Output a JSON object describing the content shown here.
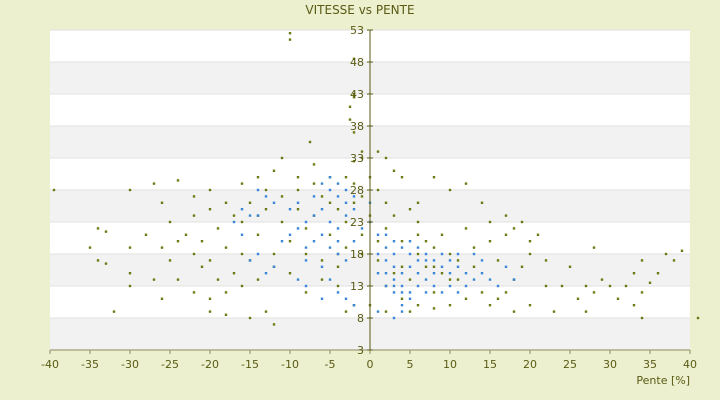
{
  "chart_data": {
    "type": "scatter",
    "title": "VITESSE vs PENTE",
    "xlabel": "Pente [%]",
    "ylabel": "",
    "xlim": [
      -40,
      40
    ],
    "ylim": [
      3,
      53
    ],
    "xticks": [
      -40,
      -35,
      -30,
      -25,
      -20,
      -15,
      -10,
      -5,
      0,
      5,
      10,
      15,
      20,
      25,
      30,
      35,
      40
    ],
    "yticks": [
      3,
      8,
      13,
      18,
      23,
      28,
      33,
      38,
      43,
      48,
      53
    ],
    "grid": "horizontal-bands",
    "legend": "none",
    "series": [
      {
        "color": "#6b7a12",
        "points": [
          [
            -10,
            52.5
          ],
          [
            -10,
            51.5
          ],
          [
            -2,
            48.5
          ],
          [
            -2,
            43
          ],
          [
            -2,
            42.5
          ],
          [
            -2.5,
            41
          ],
          [
            -2.5,
            39
          ],
          [
            -2,
            37
          ],
          [
            -7.5,
            35.5
          ],
          [
            -1,
            33
          ],
          [
            -2,
            32.5
          ],
          [
            -39.5,
            28
          ],
          [
            -30,
            28
          ],
          [
            -27,
            29
          ],
          [
            -24,
            29.5
          ],
          [
            -26,
            26
          ],
          [
            -22,
            24
          ],
          [
            -20,
            25
          ],
          [
            -34,
            22
          ],
          [
            -33,
            21.5
          ],
          [
            -35,
            19
          ],
          [
            -28,
            21
          ],
          [
            -30,
            19
          ],
          [
            -26,
            19
          ],
          [
            -24,
            20
          ],
          [
            -22,
            18
          ],
          [
            -20,
            17
          ],
          [
            -18,
            19
          ],
          [
            -16,
            18
          ],
          [
            -34,
            17
          ],
          [
            -33,
            16.5
          ],
          [
            -30,
            15
          ],
          [
            -27,
            14
          ],
          [
            -25,
            17
          ],
          [
            -24,
            14
          ],
          [
            -22,
            12
          ],
          [
            -20,
            11
          ],
          [
            -18,
            12
          ],
          [
            -16,
            13
          ],
          [
            -14,
            14
          ],
          [
            -26,
            11
          ],
          [
            -30,
            13
          ],
          [
            -32,
            9
          ],
          [
            -20,
            9
          ],
          [
            -18,
            8.5
          ],
          [
            -15,
            8
          ],
          [
            -13,
            9
          ],
          [
            -12,
            7
          ],
          [
            -8,
            12
          ],
          [
            -6,
            14
          ],
          [
            -4,
            13
          ],
          [
            -3,
            9
          ],
          [
            -2,
            10
          ],
          [
            0,
            10
          ],
          [
            2,
            13
          ],
          [
            2,
            9
          ],
          [
            4,
            11
          ],
          [
            5,
            9
          ],
          [
            6,
            10
          ],
          [
            8,
            12
          ],
          [
            8,
            9.5
          ],
          [
            10,
            10
          ],
          [
            12,
            11
          ],
          [
            14,
            12
          ],
          [
            15,
            10
          ],
          [
            17,
            12
          ],
          [
            18,
            14
          ],
          [
            19,
            16
          ],
          [
            20,
            18
          ],
          [
            21,
            21
          ],
          [
            22,
            17
          ],
          [
            22,
            13
          ],
          [
            24,
            13
          ],
          [
            25,
            16
          ],
          [
            26,
            11
          ],
          [
            27,
            13
          ],
          [
            28,
            12
          ],
          [
            29,
            14
          ],
          [
            30,
            13
          ],
          [
            28,
            19
          ],
          [
            31,
            11
          ],
          [
            32,
            13
          ],
          [
            33,
            15
          ],
          [
            34,
            17
          ],
          [
            34,
            12
          ],
          [
            35,
            13.5
          ],
          [
            36,
            15
          ],
          [
            37,
            18
          ],
          [
            38,
            17
          ],
          [
            39,
            18.5
          ],
          [
            33,
            10
          ],
          [
            34,
            8
          ],
          [
            41,
            8
          ],
          [
            20,
            10
          ],
          [
            23,
            9
          ],
          [
            18,
            9
          ],
          [
            16,
            11
          ],
          [
            27,
            9
          ],
          [
            11,
            14
          ],
          [
            13,
            16
          ],
          [
            15,
            20
          ],
          [
            16,
            17
          ],
          [
            17,
            21
          ],
          [
            18,
            22
          ],
          [
            20,
            20
          ],
          [
            19,
            23
          ],
          [
            17,
            24
          ],
          [
            15,
            23
          ],
          [
            14,
            26
          ],
          [
            12,
            29
          ],
          [
            10,
            28
          ],
          [
            8,
            30
          ],
          [
            6,
            26
          ],
          [
            4,
            30
          ],
          [
            3,
            31
          ],
          [
            2,
            33
          ],
          [
            1,
            34
          ],
          [
            -1,
            34
          ],
          [
            -3,
            30
          ],
          [
            -5,
            30
          ],
          [
            -7,
            32
          ],
          [
            -9,
            30
          ],
          [
            -11,
            33
          ],
          [
            -12,
            31
          ],
          [
            -13,
            28
          ],
          [
            -14,
            30
          ],
          [
            -15,
            26
          ],
          [
            -17,
            24
          ],
          [
            -19,
            22
          ],
          [
            -21,
            20
          ],
          [
            -11,
            27
          ],
          [
            -9,
            25
          ],
          [
            -7,
            24
          ],
          [
            -5,
            21
          ],
          [
            -3,
            19
          ],
          [
            -1,
            18
          ],
          [
            1,
            17
          ],
          [
            3,
            15
          ],
          [
            5,
            14
          ],
          [
            7,
            16
          ],
          [
            9,
            15
          ],
          [
            11,
            17
          ],
          [
            13,
            19
          ],
          [
            -10,
            20
          ],
          [
            -8,
            18
          ],
          [
            -6,
            17
          ],
          [
            -4,
            16
          ],
          [
            -12,
            18
          ],
          [
            -14,
            21
          ],
          [
            -16,
            23
          ],
          [
            -10,
            15
          ],
          [
            -12,
            16
          ],
          [
            -8,
            22
          ],
          [
            -6,
            27
          ],
          [
            -4,
            25
          ],
          [
            -2,
            26
          ],
          [
            0,
            24
          ],
          [
            2,
            22
          ],
          [
            4,
            20
          ],
          [
            6,
            21
          ],
          [
            8,
            19
          ],
          [
            10,
            18
          ],
          [
            12,
            22
          ],
          [
            -2,
            29
          ],
          [
            0,
            30
          ],
          [
            1,
            28
          ],
          [
            -1,
            27
          ],
          [
            2,
            26
          ],
          [
            3,
            24
          ],
          [
            -3,
            23
          ],
          [
            -5,
            26
          ],
          [
            5,
            25
          ],
          [
            6,
            23
          ],
          [
            7,
            20
          ],
          [
            9,
            21
          ],
          [
            -9,
            28
          ],
          [
            -7,
            29
          ],
          [
            -11,
            23
          ],
          [
            -13,
            25
          ],
          [
            -15,
            17
          ],
          [
            -17,
            15
          ],
          [
            -19,
            14
          ],
          [
            -21,
            16
          ],
          [
            -23,
            21
          ],
          [
            -25,
            23
          ],
          [
            -18,
            26
          ],
          [
            -20,
            28
          ],
          [
            -22,
            27
          ],
          [
            -16,
            29
          ],
          [
            -14,
            24
          ],
          [
            -1,
            21
          ],
          [
            1,
            20
          ],
          [
            -4,
            18
          ],
          [
            4,
            16
          ],
          [
            6,
            18
          ],
          [
            8,
            16
          ],
          [
            10,
            14
          ]
        ]
      },
      {
        "color": "#3a86d6",
        "points": [
          [
            -5,
            28
          ],
          [
            -4,
            27
          ],
          [
            -3,
            26
          ],
          [
            -6,
            25
          ],
          [
            -7,
            24
          ],
          [
            -8,
            23
          ],
          [
            -5,
            23
          ],
          [
            -4,
            22
          ],
          [
            -3,
            24
          ],
          [
            -2,
            25
          ],
          [
            -9,
            22
          ],
          [
            -10,
            21
          ],
          [
            -11,
            20
          ],
          [
            -6,
            21
          ],
          [
            -7,
            20
          ],
          [
            -8,
            19
          ],
          [
            -5,
            19
          ],
          [
            -4,
            20
          ],
          [
            -12,
            26
          ],
          [
            -13,
            27
          ],
          [
            -14,
            28
          ],
          [
            -15,
            24
          ],
          [
            -10,
            25
          ],
          [
            -9,
            26
          ],
          [
            -7,
            27
          ],
          [
            -6,
            29
          ],
          [
            -5,
            30
          ],
          [
            -4,
            29
          ],
          [
            -8,
            17
          ],
          [
            -6,
            16
          ],
          [
            -4,
            18
          ],
          [
            -3,
            17
          ],
          [
            -2,
            20
          ],
          [
            -1,
            22
          ],
          [
            0,
            23
          ],
          [
            1,
            18
          ],
          [
            2,
            17
          ],
          [
            3,
            16
          ],
          [
            4,
            15
          ],
          [
            5,
            16
          ],
          [
            6,
            15
          ],
          [
            7,
            14
          ],
          [
            8,
            15
          ],
          [
            9,
            16
          ],
          [
            10,
            15
          ],
          [
            11,
            16
          ],
          [
            12,
            15
          ],
          [
            13,
            14
          ],
          [
            14,
            15
          ],
          [
            15,
            14
          ],
          [
            16,
            13
          ],
          [
            3,
            14
          ],
          [
            4,
            13
          ],
          [
            5,
            12
          ],
          [
            6,
            13
          ],
          [
            7,
            12
          ],
          [
            8,
            13
          ],
          [
            9,
            12
          ],
          [
            2,
            19
          ],
          [
            3,
            18
          ],
          [
            4,
            19
          ],
          [
            5,
            18
          ],
          [
            6,
            17
          ],
          [
            7,
            18
          ],
          [
            8,
            17
          ],
          [
            9,
            18
          ],
          [
            10,
            17
          ],
          [
            11,
            18
          ],
          [
            2,
            15
          ],
          [
            1,
            15
          ],
          [
            3,
            13
          ],
          [
            4,
            12
          ],
          [
            5,
            11
          ],
          [
            4,
            10
          ],
          [
            3,
            12
          ],
          [
            2,
            13
          ],
          [
            -9,
            14
          ],
          [
            -8,
            13
          ],
          [
            -12,
            16
          ],
          [
            -13,
            15
          ],
          [
            -14,
            18
          ],
          [
            -15,
            17
          ],
          [
            -16,
            21
          ],
          [
            -17,
            23
          ],
          [
            -16,
            25
          ],
          [
            -14,
            24
          ],
          [
            -3,
            28
          ],
          [
            -2,
            27
          ],
          [
            0,
            26
          ],
          [
            1,
            21
          ],
          [
            2,
            21
          ],
          [
            3,
            20
          ],
          [
            5,
            20
          ],
          [
            6,
            19
          ],
          [
            7,
            17
          ],
          [
            12,
            13
          ],
          [
            11,
            12
          ],
          [
            10,
            13
          ],
          [
            14,
            17
          ],
          [
            13,
            18
          ],
          [
            17,
            16
          ],
          [
            18,
            14
          ],
          [
            -5,
            14
          ],
          [
            -4,
            12
          ],
          [
            -6,
            11
          ],
          [
            -3,
            11
          ],
          [
            -2,
            10
          ],
          [
            3,
            8
          ],
          [
            4,
            9
          ],
          [
            1,
            9
          ]
        ]
      }
    ]
  }
}
